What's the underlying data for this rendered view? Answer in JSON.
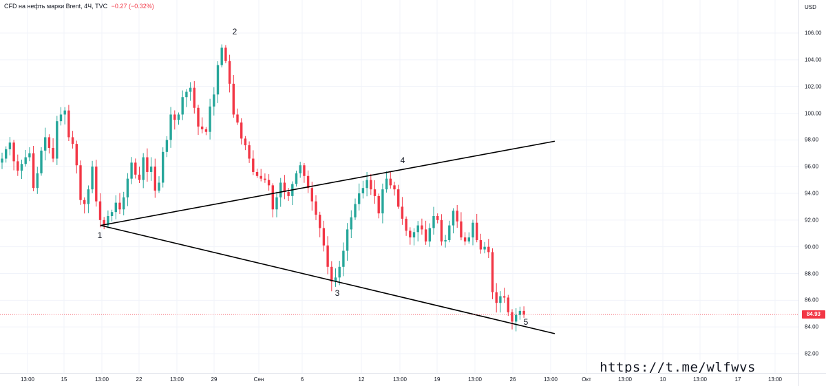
{
  "legend": {
    "symbol": "CFD на нефть марки Brent, 4Ч, TVC",
    "change": "−0.27 (−0.32%)"
  },
  "price_axis": {
    "currency": "USD",
    "ticks": [
      "106.00",
      "104.00",
      "102.00",
      "100.00",
      "98.00",
      "96.00",
      "94.00",
      "92.00",
      "90.00",
      "88.00",
      "86.00",
      "84.00",
      "82.00"
    ],
    "last_price": "84.93"
  },
  "time_axis": {
    "ticks": [
      "13:00",
      "15",
      "13:00",
      "22",
      "13:00",
      "29",
      "Сен",
      "6",
      "12",
      "13:00",
      "19",
      "13:00",
      "26",
      "13:00",
      "Окт",
      "13:00",
      "10",
      "13:00",
      "17",
      "13:00"
    ]
  },
  "pattern_points": [
    "1",
    "2",
    "3",
    "4",
    "5"
  ],
  "watermark": "https://t.me/wlfwvs",
  "colors": {
    "up": "#26a69a",
    "down": "#f23645",
    "grid": "#f0f3fa",
    "trendline": "#000000"
  },
  "chart_data": {
    "type": "candlestick",
    "title": "CFD на нефть марки Brent, 4Ч, TVC",
    "ylim": [
      81.5,
      107.8
    ],
    "y_unit": "USD",
    "last_price": 84.93,
    "x_ticks": [
      "13:00",
      "15",
      "13:00",
      "22",
      "13:00",
      "29",
      "Сен",
      "6",
      "12",
      "13:00",
      "19",
      "13:00",
      "26",
      "13:00",
      "Окт",
      "13:00",
      "10",
      "13:00",
      "17",
      "13:00"
    ],
    "y_ticks": [
      106,
      104,
      102,
      100,
      98,
      96,
      94,
      92,
      90,
      88,
      86,
      84,
      82
    ],
    "close_path": [
      96.6,
      97.3,
      97.8,
      96.4,
      95.7,
      96.2,
      96.7,
      97.0,
      94.4,
      95.5,
      97.2,
      98.2,
      97.4,
      96.6,
      99.4,
      99.9,
      100.2,
      98.2,
      97.7,
      96.1,
      93.5,
      93.2,
      94.3,
      96.0,
      93.4,
      92.0,
      91.6,
      92.3,
      92.6,
      93.3,
      92.8,
      93.7,
      95.1,
      96.3,
      95.4,
      95.0,
      96.7,
      95.6,
      96.0,
      94.2,
      94.8,
      97.1,
      98.0,
      99.9,
      99.5,
      99.9,
      101.2,
      101.6,
      101.9,
      100.4,
      99.0,
      98.8,
      98.6,
      100.5,
      101.4,
      103.6,
      104.9,
      103.9,
      102.2,
      99.9,
      99.3,
      98.1,
      97.6,
      96.6,
      95.6,
      95.3,
      95.1,
      95.0,
      94.6,
      92.8,
      93.7,
      94.8,
      94.1,
      93.8,
      94.7,
      95.5,
      96.1,
      95.3,
      94.4,
      93.4,
      92.4,
      91.4,
      90.1,
      88.5,
      87.4,
      87.7,
      88.5,
      89.7,
      91.3,
      92.2,
      93.2,
      94.0,
      94.4,
      95.0,
      94.3,
      93.8,
      92.5,
      94.3,
      95.1,
      94.6,
      94.3,
      93.0,
      92.1,
      91.2,
      90.7,
      91.1,
      91.6,
      91.3,
      90.4,
      91.4,
      92.3,
      92.0,
      90.4,
      90.5,
      91.6,
      92.7,
      91.9,
      90.7,
      90.4,
      90.7,
      91.8,
      90.5,
      89.8,
      90.0,
      89.6,
      86.6,
      85.8,
      86.3,
      86.2,
      85.1,
      84.4,
      84.9,
      85.2,
      84.93
    ],
    "trendlines": [
      {
        "from": {
          "index": 26,
          "price": 91.6
        },
        "to": {
          "index": 197,
          "price": 97.9
        }
      },
      {
        "from": {
          "index": 26,
          "price": 91.6
        },
        "to": {
          "index": 197,
          "price": 83.5
        }
      }
    ],
    "labeled_points": [
      {
        "label": "1",
        "index": 26,
        "price": 91.6
      },
      {
        "label": "2",
        "index": 55,
        "price": 105.4
      },
      {
        "label": "3",
        "index": 84,
        "price": 87.3
      },
      {
        "label": "4",
        "index": 99,
        "price": 95.6
      },
      {
        "label": "5",
        "index": 136,
        "price": 84.0
      }
    ]
  }
}
